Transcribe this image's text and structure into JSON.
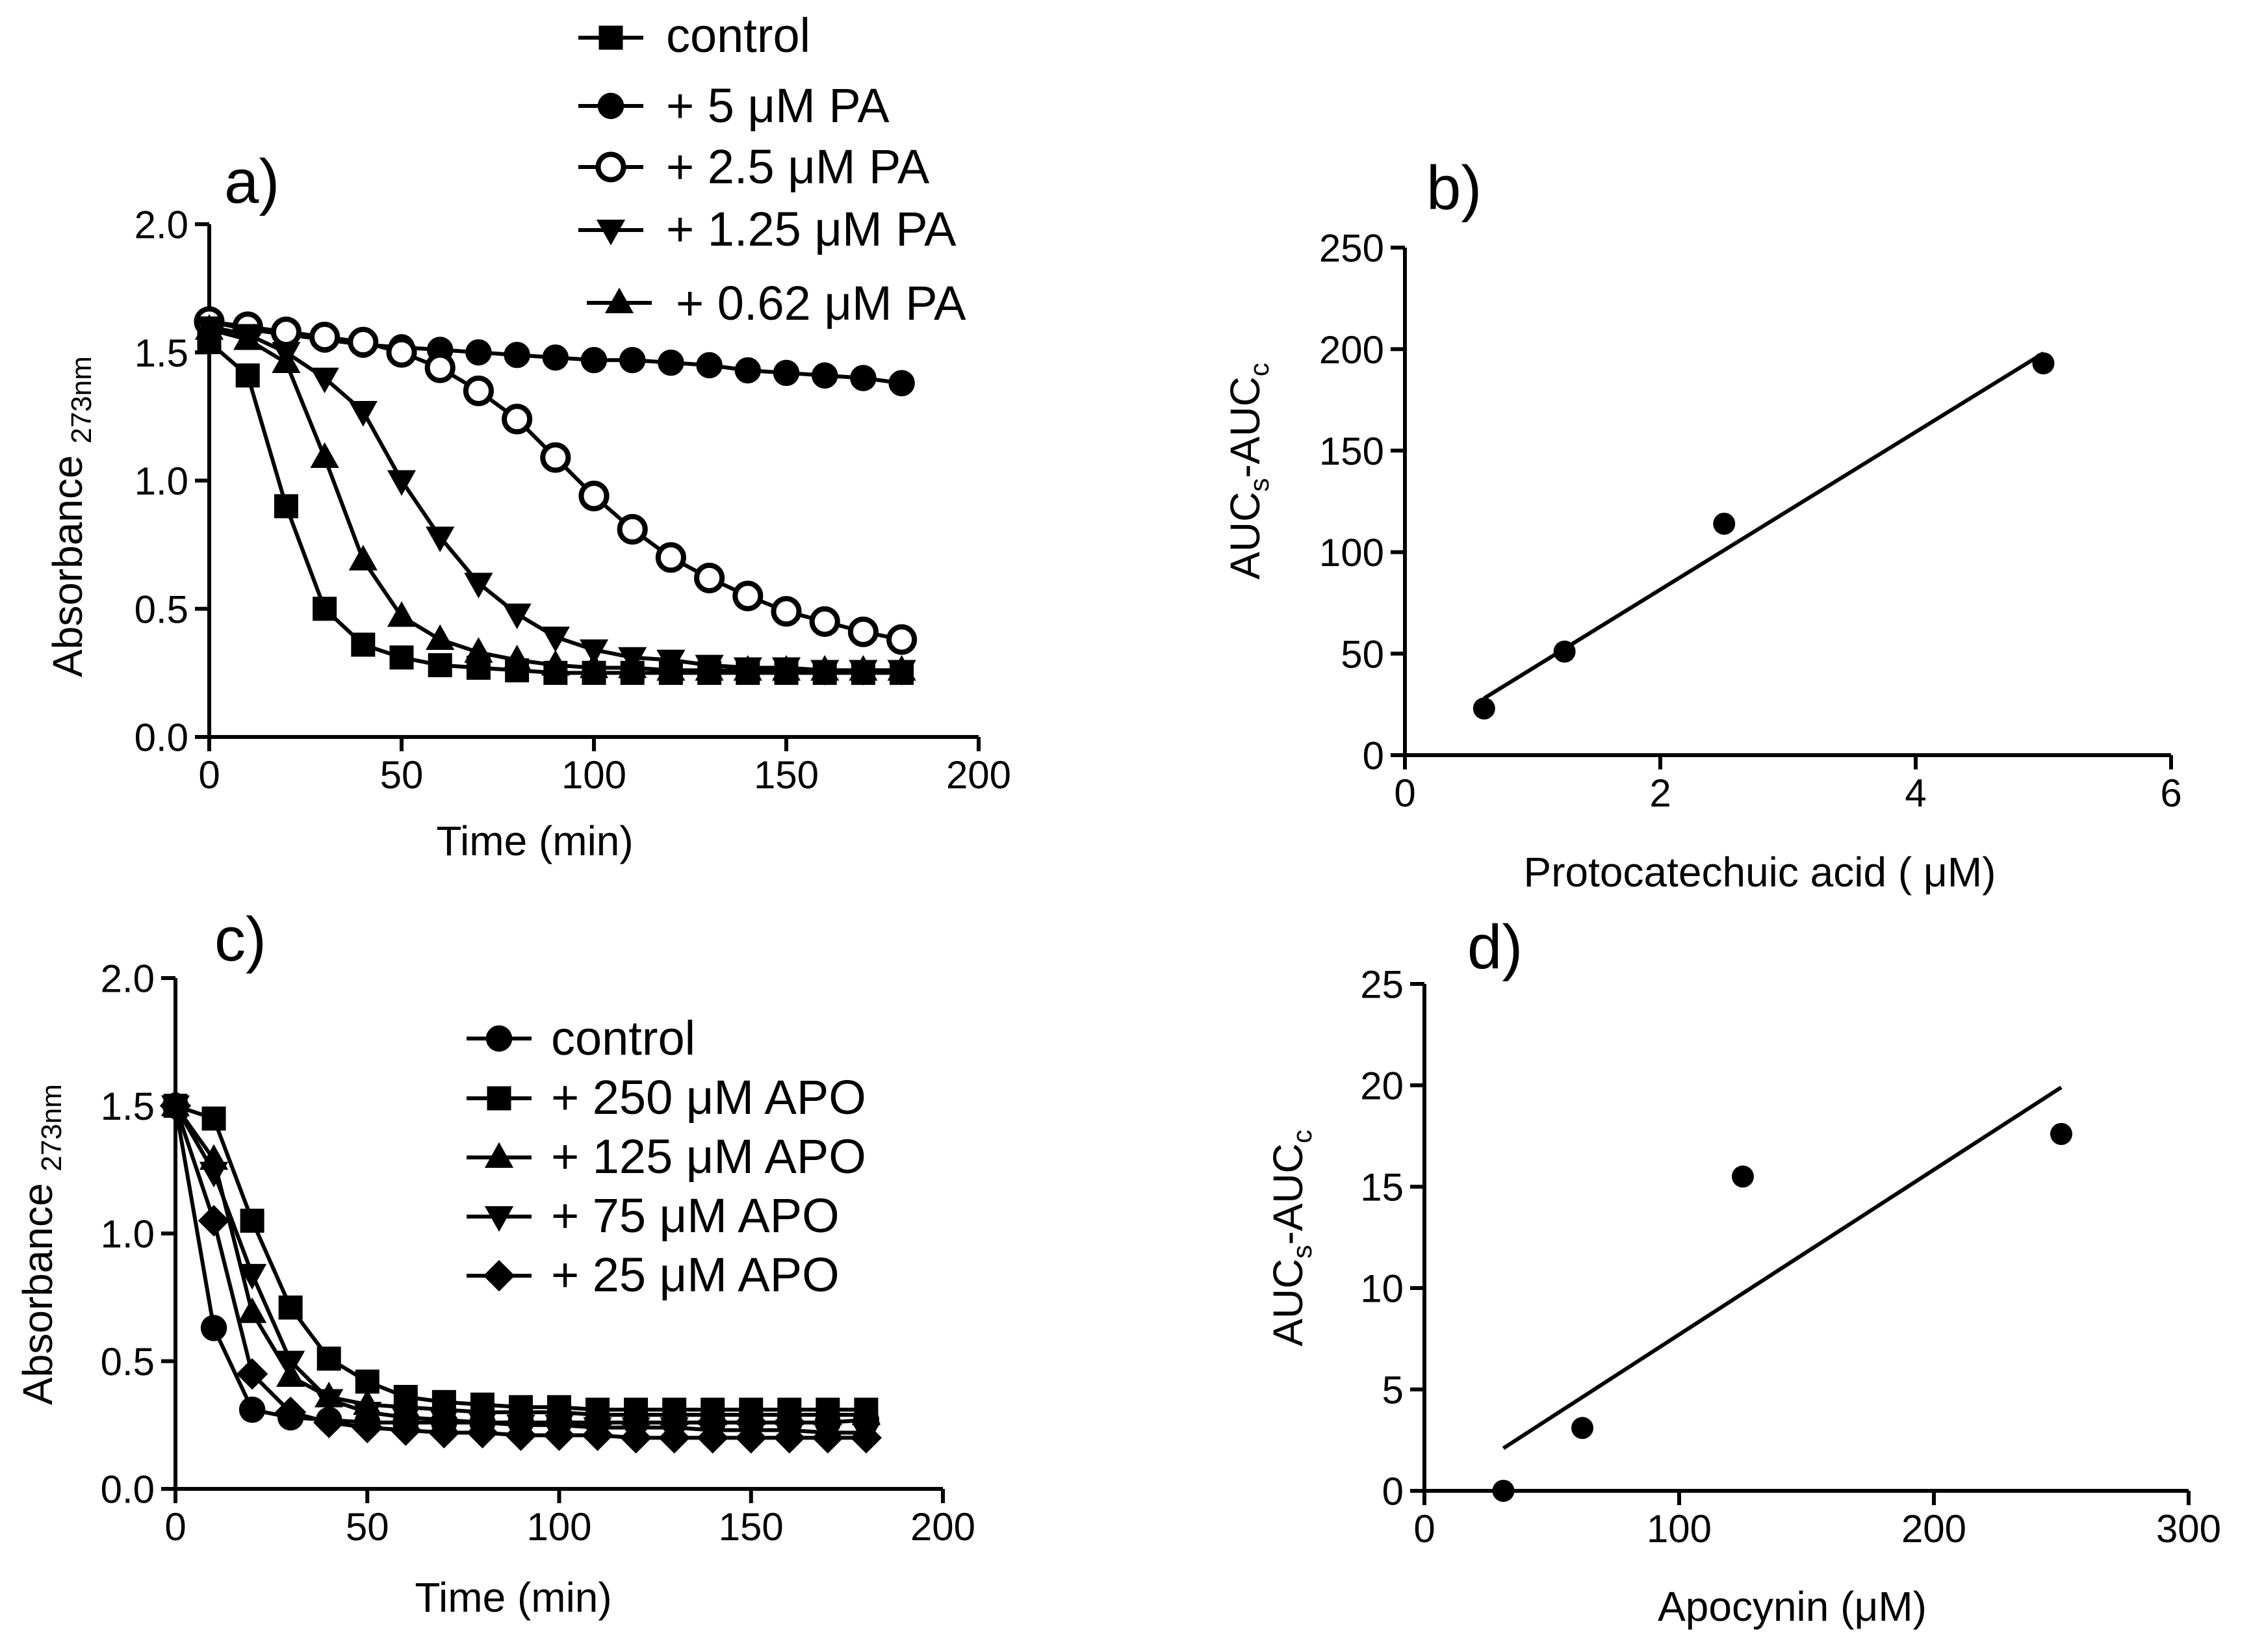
{
  "figure": {
    "colors": {
      "ink": "#000000",
      "background": "#ffffff"
    }
  },
  "chart_data": [
    {
      "id": "a",
      "panel_label": "a)",
      "type": "line",
      "xlabel": "Time (min)",
      "ylabel_main": "Absorbance",
      "ylabel_sub": "273nm",
      "xlim": [
        0,
        200
      ],
      "ylim": [
        0,
        2.0
      ],
      "xticks": [
        "0",
        "50",
        "100",
        "150",
        "200"
      ],
      "yticks": [
        "0.0",
        "0.5",
        "1.0",
        "1.5",
        "2.0"
      ],
      "legend_position": "top-center",
      "x": [
        0,
        10,
        20,
        30,
        40,
        50,
        60,
        70,
        80,
        90,
        100,
        110,
        120,
        130,
        140,
        150,
        160,
        170,
        180
      ],
      "series": [
        {
          "name": "control",
          "marker": "square",
          "values": [
            1.54,
            1.41,
            0.9,
            0.5,
            0.36,
            0.31,
            0.28,
            0.27,
            0.26,
            0.25,
            0.25,
            0.25,
            0.25,
            0.25,
            0.25,
            0.25,
            0.25,
            0.25,
            0.25
          ]
        },
        {
          "name": "+ 5 μM PA",
          "marker": "circle",
          "values": [
            1.62,
            1.59,
            1.57,
            1.55,
            1.53,
            1.52,
            1.51,
            1.5,
            1.49,
            1.48,
            1.47,
            1.47,
            1.46,
            1.45,
            1.43,
            1.42,
            1.41,
            1.4,
            1.38
          ]
        },
        {
          "name": "+ 2.5 μM PA",
          "marker": "open-circle",
          "values": [
            1.62,
            1.6,
            1.58,
            1.56,
            1.54,
            1.5,
            1.44,
            1.35,
            1.24,
            1.09,
            0.94,
            0.81,
            0.7,
            0.62,
            0.55,
            0.49,
            0.45,
            0.41,
            0.38
          ]
        },
        {
          "name": "+ 1.25 μM PA",
          "marker": "triangle-down",
          "values": [
            1.6,
            1.57,
            1.5,
            1.4,
            1.27,
            1.0,
            0.78,
            0.6,
            0.48,
            0.39,
            0.34,
            0.31,
            0.3,
            0.28,
            0.27,
            0.27,
            0.26,
            0.26,
            0.26
          ]
        },
        {
          "name": "+ 0.62 μM PA",
          "marker": "triangle-up",
          "values": [
            1.59,
            1.55,
            1.46,
            1.09,
            0.69,
            0.47,
            0.38,
            0.33,
            0.3,
            0.28,
            0.27,
            0.27,
            0.26,
            0.26,
            0.26,
            0.26,
            0.26,
            0.26,
            0.26
          ]
        }
      ]
    },
    {
      "id": "b",
      "panel_label": "b)",
      "type": "scatter",
      "xlabel": "Protocatechuic acid ( μM)",
      "ylabel": "AUCₛ-AUCᴄ",
      "ylabel_parts": {
        "a": "AUC",
        "sub1": "s",
        "b": "-AUC",
        "sub2": "c"
      },
      "xlim": [
        0,
        6
      ],
      "ylim": [
        0,
        250
      ],
      "xticks": [
        "0",
        "2",
        "4",
        "6"
      ],
      "yticks": [
        "0",
        "50",
        "100",
        "150",
        "200",
        "250"
      ],
      "points": {
        "x": [
          0.62,
          1.25,
          2.5,
          5
        ],
        "y": [
          23,
          51,
          114,
          193
        ]
      },
      "fit_line": {
        "x": [
          0.62,
          5
        ],
        "y": [
          28,
          198
        ]
      }
    },
    {
      "id": "c",
      "panel_label": "c)",
      "type": "line",
      "xlabel": "Time (min)",
      "ylabel_main": "Absorbance",
      "ylabel_sub": "273nm",
      "xlim": [
        0,
        200
      ],
      "ylim": [
        0,
        2.0
      ],
      "xticks": [
        "0",
        "50",
        "100",
        "150",
        "200"
      ],
      "yticks": [
        "0.0",
        "0.5",
        "1.0",
        "1.5",
        "2.0"
      ],
      "legend_position": "top-right",
      "x": [
        0,
        10,
        20,
        30,
        40,
        50,
        60,
        70,
        80,
        90,
        100,
        110,
        120,
        130,
        140,
        150,
        160,
        170,
        180
      ],
      "series": [
        {
          "name": "control",
          "marker": "circle",
          "values": [
            1.5,
            0.63,
            0.31,
            0.28,
            0.27,
            0.26,
            0.26,
            0.26,
            0.26,
            0.26,
            0.26,
            0.26,
            0.26,
            0.26,
            0.26,
            0.26,
            0.26,
            0.26,
            0.27
          ]
        },
        {
          "name": "+ 250 μM APO",
          "marker": "square",
          "values": [
            1.5,
            1.45,
            1.05,
            0.71,
            0.51,
            0.42,
            0.36,
            0.34,
            0.33,
            0.32,
            0.32,
            0.31,
            0.31,
            0.31,
            0.31,
            0.31,
            0.31,
            0.31,
            0.31
          ]
        },
        {
          "name": "+ 125 μM APO",
          "marker": "triangle-up",
          "values": [
            1.5,
            1.29,
            0.69,
            0.44,
            0.36,
            0.33,
            0.32,
            0.31,
            0.3,
            0.3,
            0.3,
            0.29,
            0.29,
            0.29,
            0.29,
            0.29,
            0.29,
            0.29,
            0.29
          ]
        },
        {
          "name": "+ 75 μM APO",
          "marker": "triangle-down",
          "values": [
            1.5,
            1.24,
            0.84,
            0.5,
            0.35,
            0.3,
            0.28,
            0.27,
            0.26,
            0.25,
            0.25,
            0.24,
            0.24,
            0.24,
            0.23,
            0.23,
            0.23,
            0.22,
            0.22
          ]
        },
        {
          "name": "+ 25 μM APO",
          "marker": "diamond",
          "values": [
            1.5,
            1.05,
            0.45,
            0.3,
            0.26,
            0.24,
            0.23,
            0.22,
            0.22,
            0.21,
            0.21,
            0.21,
            0.2,
            0.2,
            0.2,
            0.2,
            0.2,
            0.2,
            0.2
          ]
        }
      ]
    },
    {
      "id": "d",
      "panel_label": "d)",
      "type": "scatter",
      "xlabel": "Apocynin (μM)",
      "ylabel": "AUCₛ-AUCᴄ",
      "ylabel_parts": {
        "a": "AUC",
        "sub1": "s",
        "b": "-AUC",
        "sub2": "c"
      },
      "xlim": [
        0,
        300
      ],
      "ylim": [
        0,
        25
      ],
      "xticks": [
        "0",
        "100",
        "200",
        "300"
      ],
      "yticks": [
        "0",
        "5",
        "10",
        "15",
        "20",
        "25"
      ],
      "points": {
        "x": [
          31,
          62,
          125,
          250
        ],
        "y": [
          0,
          3.1,
          15.5,
          17.6
        ]
      },
      "fit_line": {
        "x": [
          31,
          250
        ],
        "y": [
          2.1,
          19.9
        ]
      }
    }
  ]
}
